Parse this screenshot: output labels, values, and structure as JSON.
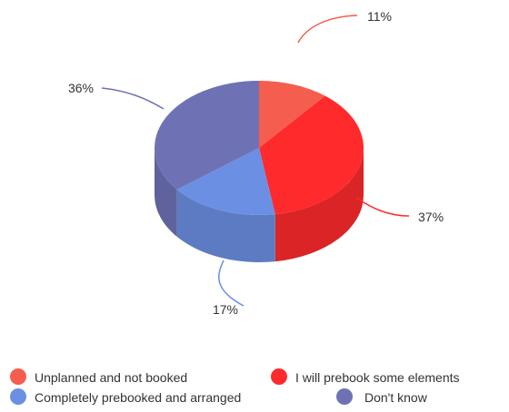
{
  "chart_data": {
    "type": "pie",
    "style": "3d",
    "title": "",
    "slices": [
      {
        "name": "Unplanned and not booked",
        "value": 11,
        "label": "11%",
        "color": "#f55d4e"
      },
      {
        "name": "I will prebook some elements",
        "value": 37,
        "label": "37%",
        "color": "#fe2a2c"
      },
      {
        "name": "Completely prebooked and arranged",
        "value": 17,
        "label": "17%",
        "color": "#6b8fe2"
      },
      {
        "name": "Don't know",
        "value": 36,
        "label": "36%",
        "color": "#6e72b5"
      }
    ],
    "legend": {
      "position": "bottom"
    }
  }
}
